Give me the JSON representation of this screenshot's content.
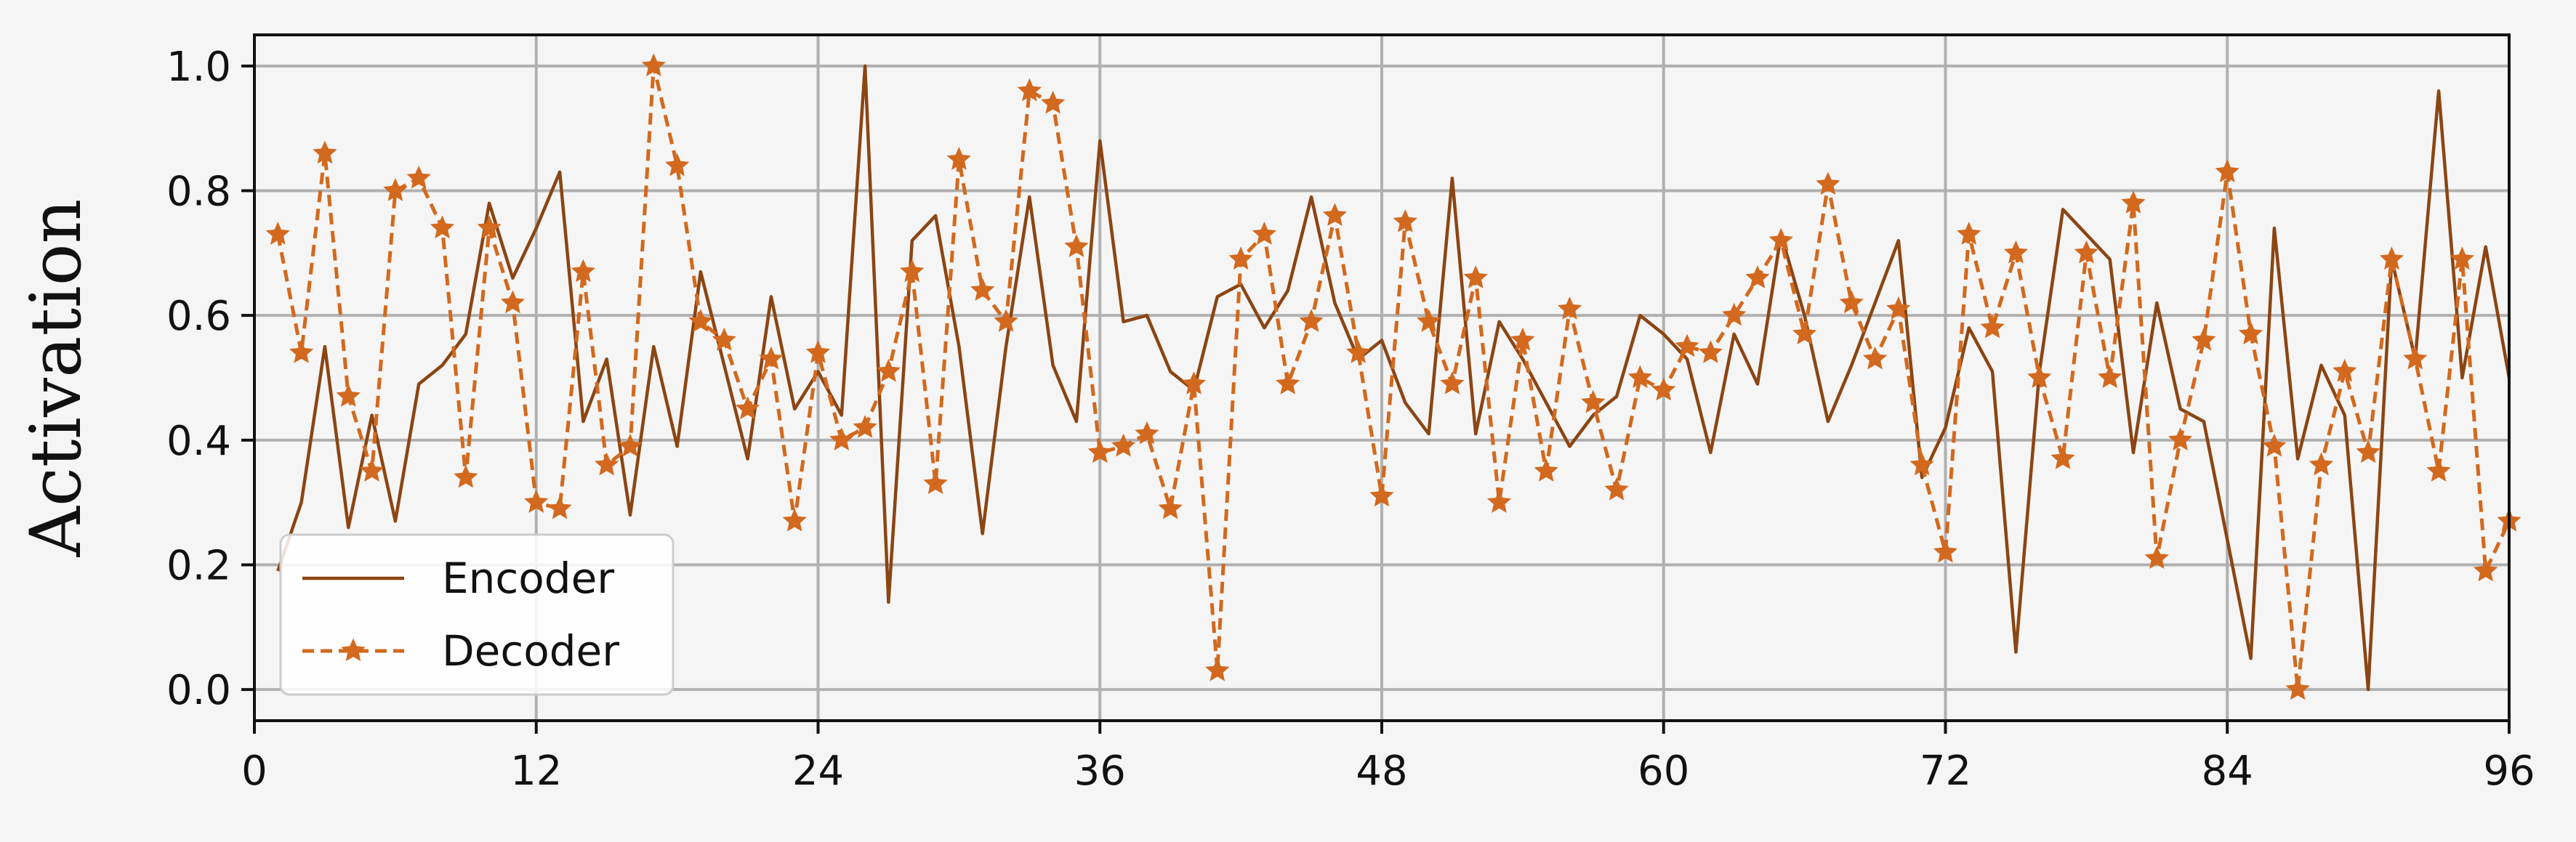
{
  "chart_data": {
    "type": "line",
    "title": "",
    "xlabel": "",
    "ylabel": "Activation",
    "xlim": [
      0,
      96
    ],
    "ylim": [
      -0.05,
      1.05
    ],
    "xticks": [
      0,
      12,
      24,
      36,
      48,
      60,
      72,
      84,
      96
    ],
    "xtick_labels": [
      "0",
      "12",
      "24",
      "36",
      "48",
      "60",
      "72",
      "84",
      "96"
    ],
    "yticks": [
      0.0,
      0.2,
      0.4,
      0.6,
      0.8,
      1.0
    ],
    "ytick_labels": [
      "0.0",
      "0.2",
      "0.4",
      "0.6",
      "0.8",
      "1.0"
    ],
    "grid": true,
    "legend": "lower-left",
    "x": [
      1,
      2,
      3,
      4,
      5,
      6,
      7,
      8,
      9,
      10,
      11,
      12,
      13,
      14,
      15,
      16,
      17,
      18,
      19,
      20,
      21,
      22,
      23,
      24,
      25,
      26,
      27,
      28,
      29,
      30,
      31,
      32,
      33,
      34,
      35,
      36,
      37,
      38,
      39,
      40,
      41,
      42,
      43,
      44,
      45,
      46,
      47,
      48,
      49,
      50,
      51,
      52,
      53,
      54,
      55,
      56,
      57,
      58,
      59,
      60,
      61,
      62,
      63,
      64,
      65,
      66,
      67,
      68,
      69,
      70,
      71,
      72,
      73,
      74,
      75,
      76,
      77,
      78,
      79,
      80,
      81,
      82,
      83,
      84,
      85,
      86,
      87,
      88,
      89,
      90,
      91,
      92,
      93,
      94,
      95,
      96
    ],
    "series": [
      {
        "name": "Encoder",
        "color": "#8b4513",
        "style": "solid",
        "marker": "none",
        "values": [
          0.19,
          0.3,
          0.55,
          0.26,
          0.44,
          0.27,
          0.49,
          0.52,
          0.57,
          0.78,
          0.66,
          0.74,
          0.83,
          0.43,
          0.53,
          0.28,
          0.55,
          0.39,
          0.67,
          0.52,
          0.37,
          0.63,
          0.45,
          0.51,
          0.44,
          1.0,
          0.14,
          0.72,
          0.76,
          0.55,
          0.25,
          0.55,
          0.79,
          0.52,
          0.43,
          0.88,
          0.59,
          0.6,
          0.51,
          0.48,
          0.63,
          0.65,
          0.58,
          0.64,
          0.79,
          0.62,
          0.53,
          0.56,
          0.46,
          0.41,
          0.82,
          0.41,
          0.59,
          0.53,
          0.46,
          0.39,
          0.44,
          0.47,
          0.6,
          0.57,
          0.53,
          0.38,
          0.57,
          0.49,
          0.73,
          0.6,
          0.43,
          0.52,
          0.62,
          0.72,
          0.34,
          0.42,
          0.58,
          0.51,
          0.06,
          0.51,
          0.77,
          0.73,
          0.69,
          0.38,
          0.62,
          0.45,
          0.43,
          0.24,
          0.05,
          0.74,
          0.37,
          0.52,
          0.44,
          0.0,
          0.69,
          0.53,
          0.96,
          0.5,
          0.71,
          0.5
        ]
      },
      {
        "name": "Decoder",
        "color": "#d2691e",
        "style": "dashed",
        "marker": "star",
        "values": [
          0.73,
          0.54,
          0.86,
          0.47,
          0.35,
          0.8,
          0.82,
          0.74,
          0.34,
          0.74,
          0.62,
          0.3,
          0.29,
          0.67,
          0.36,
          0.39,
          1.0,
          0.84,
          0.59,
          0.56,
          0.45,
          0.53,
          0.27,
          0.54,
          0.4,
          0.42,
          0.51,
          0.67,
          0.33,
          0.85,
          0.64,
          0.59,
          0.96,
          0.94,
          0.71,
          0.38,
          0.39,
          0.41,
          0.29,
          0.49,
          0.03,
          0.69,
          0.73,
          0.49,
          0.59,
          0.76,
          0.54,
          0.31,
          0.75,
          0.59,
          0.49,
          0.66,
          0.3,
          0.56,
          0.35,
          0.61,
          0.46,
          0.32,
          0.5,
          0.48,
          0.55,
          0.54,
          0.6,
          0.66,
          0.72,
          0.57,
          0.81,
          0.62,
          0.53,
          0.61,
          0.36,
          0.22,
          0.73,
          0.58,
          0.7,
          0.5,
          0.37,
          0.7,
          0.5,
          0.78,
          0.21,
          0.4,
          0.56,
          0.83,
          0.57,
          0.39,
          0.0,
          0.36,
          0.51,
          0.38,
          0.69,
          0.53,
          0.35,
          0.69,
          0.19,
          0.27
        ]
      }
    ]
  }
}
